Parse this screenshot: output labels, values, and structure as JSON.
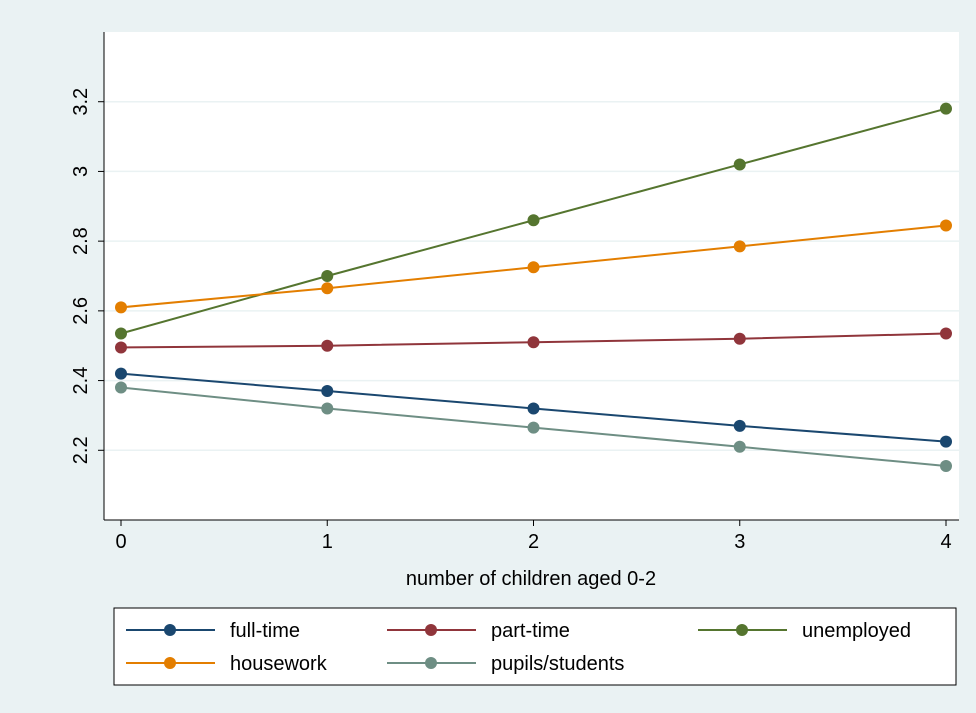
{
  "chart_data": {
    "type": "line",
    "xlabel": "number of children aged 0-2",
    "ylabel": "",
    "x": [
      0,
      1,
      2,
      3,
      4
    ],
    "xticks": [
      "0",
      "1",
      "2",
      "3",
      "4"
    ],
    "yticks": [
      "2.2",
      "2.4",
      "2.6",
      "2.8",
      "3",
      "3.2"
    ],
    "ytick_values": [
      2.2,
      2.4,
      2.6,
      2.8,
      3.0,
      3.2
    ],
    "xlim": [
      -0.07,
      4.07
    ],
    "ylim": [
      2.0,
      3.4
    ],
    "grid": true,
    "legend_position": "bottom",
    "series": [
      {
        "name": "full-time",
        "color": "#1a476f",
        "values": [
          2.42,
          2.37,
          2.32,
          2.27,
          2.225
        ]
      },
      {
        "name": "part-time",
        "color": "#90353b",
        "values": [
          2.495,
          2.5,
          2.51,
          2.52,
          2.535
        ]
      },
      {
        "name": "unemployed",
        "color": "#55752f",
        "values": [
          2.535,
          2.7,
          2.86,
          3.02,
          3.18
        ]
      },
      {
        "name": "housework",
        "color": "#e37e00",
        "values": [
          2.61,
          2.665,
          2.725,
          2.785,
          2.845
        ]
      },
      {
        "name": "pupils/students",
        "color": "#6e8e84",
        "values": [
          2.38,
          2.32,
          2.265,
          2.21,
          2.155
        ]
      }
    ]
  }
}
